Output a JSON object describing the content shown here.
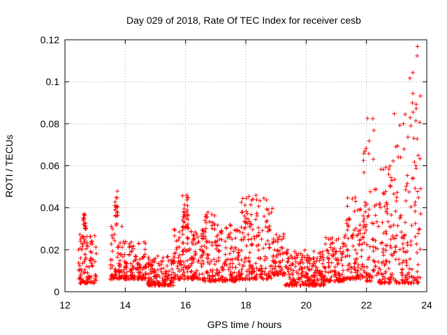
{
  "chart_data": {
    "type": "scatter",
    "title": "Day 029 of 2018, Rate Of TEC Index for receiver cesb",
    "xlabel": "GPS time / hours",
    "ylabel": "ROTI / TECUs",
    "xlim": [
      12,
      24
    ],
    "ylim": [
      0,
      0.12
    ],
    "xticks": [
      12,
      14,
      16,
      18,
      20,
      22,
      24
    ],
    "xtick_labels": [
      "12",
      "14",
      "16",
      "18",
      "20",
      "22",
      "24"
    ],
    "yticks": [
      0,
      0.02,
      0.04,
      0.06,
      0.08,
      0.1,
      0.12
    ],
    "ytick_labels": [
      "0",
      "0.02",
      "0.04",
      "0.06",
      "0.08",
      "0.1",
      "0.12"
    ],
    "grid": true,
    "marker": "plus",
    "color": "#ff0000",
    "series": [
      {
        "name": "ROTI",
        "envelope": [
          {
            "x": [
              12.45,
              13.05
            ],
            "y": [
              0.004,
              0.028
            ]
          },
          {
            "x": [
              12.6,
              12.7
            ],
            "y": [
              0.03,
              0.038
            ]
          },
          {
            "x": [
              13.5,
              14.0
            ],
            "y": [
              0.006,
              0.034
            ]
          },
          {
            "x": [
              13.65,
              13.75
            ],
            "y": [
              0.036,
              0.048
            ]
          },
          {
            "x": [
              14.0,
              14.7
            ],
            "y": [
              0.006,
              0.024
            ]
          },
          {
            "x": [
              14.7,
              15.6
            ],
            "y": [
              0.003,
              0.017
            ]
          },
          {
            "x": [
              15.6,
              16.6
            ],
            "y": [
              0.006,
              0.03
            ]
          },
          {
            "x": [
              15.9,
              16.1
            ],
            "y": [
              0.03,
              0.047
            ]
          },
          {
            "x": [
              16.6,
              17.0
            ],
            "y": [
              0.005,
              0.042
            ]
          },
          {
            "x": [
              17.0,
              17.8
            ],
            "y": [
              0.005,
              0.032
            ]
          },
          {
            "x": [
              17.8,
              18.9
            ],
            "y": [
              0.006,
              0.046
            ]
          },
          {
            "x": [
              18.9,
              19.3
            ],
            "y": [
              0.008,
              0.028
            ]
          },
          {
            "x": [
              19.3,
              20.6
            ],
            "y": [
              0.003,
              0.02
            ]
          },
          {
            "x": [
              20.6,
              21.3
            ],
            "y": [
              0.005,
              0.026
            ]
          },
          {
            "x": [
              21.3,
              21.9
            ],
            "y": [
              0.006,
              0.046
            ]
          },
          {
            "x": [
              21.9,
              22.3
            ],
            "y": [
              0.005,
              0.085
            ]
          },
          {
            "x": [
              22.3,
              22.9
            ],
            "y": [
              0.004,
              0.065
            ]
          },
          {
            "x": [
              22.9,
              23.4
            ],
            "y": [
              0.004,
              0.085
            ]
          },
          {
            "x": [
              23.4,
              23.8
            ],
            "y": [
              0.004,
              0.12
            ]
          }
        ]
      }
    ]
  }
}
